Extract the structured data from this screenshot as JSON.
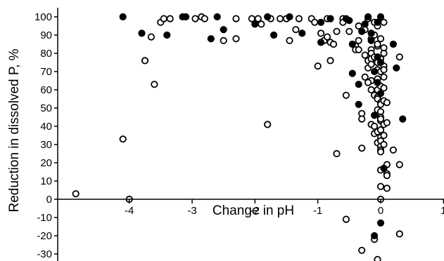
{
  "chart_data": {
    "type": "scatter",
    "title": "",
    "xlabel": "Change in pH",
    "ylabel": "Reduction in dissolved P, %",
    "xlim": [
      -4.9,
      1
    ],
    "ylim": [
      -33,
      105
    ],
    "x_ticks": [
      -4,
      -3,
      -2,
      -1,
      0,
      1
    ],
    "y_ticks": [
      -30,
      -20,
      -10,
      0,
      10,
      20,
      30,
      40,
      50,
      60,
      70,
      80,
      90,
      100
    ],
    "grid": false,
    "legend": "none",
    "colors": {
      "filled": "#000000",
      "open_fill": "#ffffff",
      "stroke": "#000000"
    },
    "series": [
      {
        "marker": "filled",
        "points": [
          [
            -4.1,
            100
          ],
          [
            -3.8,
            91
          ],
          [
            -3.4,
            90
          ],
          [
            -3.15,
            100
          ],
          [
            -3.1,
            100
          ],
          [
            -2.7,
            88
          ],
          [
            -2.6,
            100
          ],
          [
            -2.5,
            93
          ],
          [
            -2.0,
            96
          ],
          [
            -1.8,
            100
          ],
          [
            -1.7,
            90
          ],
          [
            -1.45,
            100
          ],
          [
            -1.25,
            91
          ],
          [
            -0.95,
            97
          ],
          [
            -0.95,
            86
          ],
          [
            -0.8,
            99
          ],
          [
            -0.55,
            99
          ],
          [
            -0.5,
            98
          ],
          [
            -0.45,
            85
          ],
          [
            -0.45,
            69
          ],
          [
            -0.35,
            52
          ],
          [
            -0.35,
            63
          ],
          [
            -0.3,
            92
          ],
          [
            -0.25,
            96
          ],
          [
            -0.2,
            100
          ],
          [
            -0.15,
            91
          ],
          [
            -0.15,
            87
          ],
          [
            -0.1,
            70
          ],
          [
            -0.1,
            46
          ],
          [
            -0.05,
            97
          ],
          [
            -0.05,
            78
          ],
          [
            -0.05,
            64
          ],
          [
            0.0,
            100
          ],
          [
            0.0,
            75
          ],
          [
            0.0,
            58
          ],
          [
            0.0,
            -13
          ],
          [
            0.05,
            17
          ],
          [
            0.2,
            85
          ],
          [
            0.25,
            72
          ],
          [
            0.35,
            44
          ],
          [
            -0.1,
            -20
          ]
        ]
      },
      {
        "marker": "open",
        "points": [
          [
            -4.85,
            3
          ],
          [
            -4.1,
            33
          ],
          [
            -4.0,
            0
          ],
          [
            -3.75,
            76
          ],
          [
            -3.65,
            89
          ],
          [
            -3.6,
            63
          ],
          [
            -3.5,
            97
          ],
          [
            -3.45,
            99
          ],
          [
            -3.35,
            99
          ],
          [
            -2.95,
            99
          ],
          [
            -2.85,
            100
          ],
          [
            -2.8,
            99
          ],
          [
            -2.5,
            87
          ],
          [
            -2.3,
            99
          ],
          [
            -2.3,
            88
          ],
          [
            -2.05,
            99
          ],
          [
            -1.95,
            99
          ],
          [
            -1.9,
            96
          ],
          [
            -1.8,
            41
          ],
          [
            -1.75,
            99
          ],
          [
            -1.6,
            99
          ],
          [
            -1.5,
            99
          ],
          [
            -1.45,
            87
          ],
          [
            -1.35,
            93
          ],
          [
            -1.3,
            99
          ],
          [
            -1.1,
            99
          ],
          [
            -1.05,
            97
          ],
          [
            -1.0,
            73
          ],
          [
            -0.95,
            91
          ],
          [
            -0.9,
            87
          ],
          [
            -0.85,
            99
          ],
          [
            -0.85,
            89
          ],
          [
            -0.8,
            99
          ],
          [
            -0.8,
            86
          ],
          [
            -0.8,
            76
          ],
          [
            -0.75,
            85
          ],
          [
            -0.7,
            25
          ],
          [
            -0.7,
            92
          ],
          [
            -0.6,
            99
          ],
          [
            -0.6,
            97
          ],
          [
            -0.55,
            57
          ],
          [
            -0.55,
            -11
          ],
          [
            -0.5,
            92
          ],
          [
            -0.4,
            84
          ],
          [
            -0.4,
            82
          ],
          [
            -0.35,
            95
          ],
          [
            -0.35,
            87
          ],
          [
            -0.3,
            47
          ],
          [
            -0.3,
            44
          ],
          [
            -0.3,
            28
          ],
          [
            -0.3,
            -28
          ],
          [
            -0.25,
            93
          ],
          [
            -0.25,
            67
          ],
          [
            -0.2,
            99
          ],
          [
            -0.2,
            76
          ],
          [
            -0.2,
            72
          ],
          [
            -0.15,
            88
          ],
          [
            -0.15,
            82
          ],
          [
            -0.15,
            80
          ],
          [
            -0.15,
            77
          ],
          [
            -0.15,
            74
          ],
          [
            -0.15,
            65
          ],
          [
            -0.15,
            60
          ],
          [
            -0.15,
            41
          ],
          [
            -0.1,
            97
          ],
          [
            -0.1,
            90
          ],
          [
            -0.1,
            78
          ],
          [
            -0.1,
            57
          ],
          [
            -0.1,
            40
          ],
          [
            -0.1,
            36
          ],
          [
            -0.1,
            -22
          ],
          [
            -0.05,
            95
          ],
          [
            -0.05,
            84
          ],
          [
            -0.05,
            75
          ],
          [
            -0.05,
            71
          ],
          [
            -0.05,
            66
          ],
          [
            -0.05,
            60
          ],
          [
            -0.05,
            56
          ],
          [
            -0.05,
            55
          ],
          [
            -0.05,
            49
          ],
          [
            -0.05,
            37
          ],
          [
            -0.05,
            31
          ],
          [
            -0.05,
            -33
          ],
          [
            0.0,
            88
          ],
          [
            0.0,
            70
          ],
          [
            0.0,
            62
          ],
          [
            0.0,
            53
          ],
          [
            0.0,
            52
          ],
          [
            0.0,
            48
          ],
          [
            0.0,
            45
          ],
          [
            0.0,
            43
          ],
          [
            0.0,
            38
          ],
          [
            0.0,
            34
          ],
          [
            0.0,
            32
          ],
          [
            0.0,
            29
          ],
          [
            0.0,
            27
          ],
          [
            0.0,
            26
          ],
          [
            0.0,
            16
          ],
          [
            0.0,
            7
          ],
          [
            0.0,
            0
          ],
          [
            0.05,
            97
          ],
          [
            0.05,
            83
          ],
          [
            0.05,
            80
          ],
          [
            0.05,
            73
          ],
          [
            0.05,
            67
          ],
          [
            0.05,
            61
          ],
          [
            0.05,
            54
          ],
          [
            0.05,
            41
          ],
          [
            0.05,
            35
          ],
          [
            0.05,
            30
          ],
          [
            0.1,
            53
          ],
          [
            0.1,
            42
          ],
          [
            0.1,
            19
          ],
          [
            0.1,
            14
          ],
          [
            0.1,
            6
          ],
          [
            0.1,
            13
          ],
          [
            0.2,
            27
          ],
          [
            0.3,
            78
          ],
          [
            0.3,
            19
          ],
          [
            0.3,
            -19
          ],
          [
            -0.35,
            82
          ],
          [
            -0.25,
            79
          ],
          [
            -0.2,
            64
          ],
          [
            0.05,
            71
          ],
          [
            0.0,
            77
          ],
          [
            -0.05,
            85
          ],
          [
            0.0,
            44
          ]
        ]
      }
    ]
  }
}
